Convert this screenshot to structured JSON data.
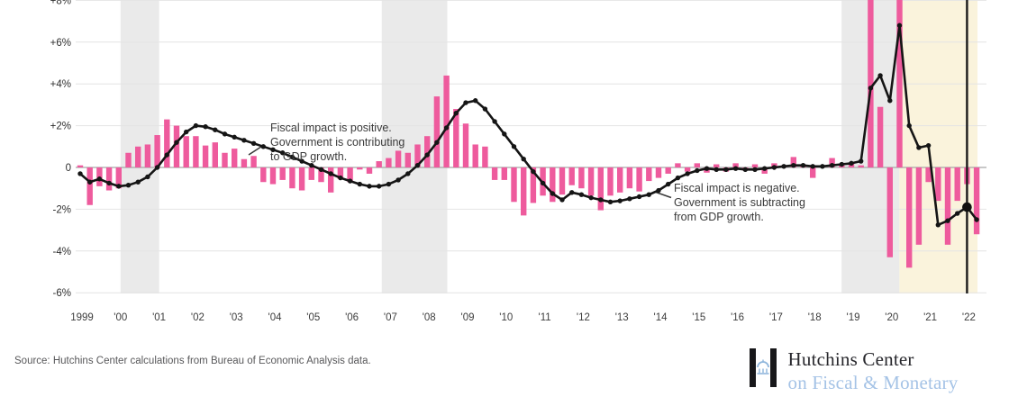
{
  "chart_data": {
    "type": "bar",
    "title": "",
    "x_axis": {
      "start_quarter": "1999Q1",
      "end_quarter": "2022Q2",
      "frequency": "quarterly",
      "tick_labels": [
        "1999",
        "'00",
        "'01",
        "'02",
        "'03",
        "'04",
        "'05",
        "'06",
        "'07",
        "'08",
        "'09",
        "'10",
        "'11",
        "'12",
        "'13",
        "'14",
        "'15",
        "'16",
        "'17",
        "'18",
        "'19",
        "'20",
        "'21",
        "'22"
      ]
    },
    "y_axis": {
      "tick_labels": [
        "+8%",
        "+6%",
        "+4%",
        "+2%",
        "0",
        "-2%",
        "-4%",
        "-6%"
      ],
      "tick_values": [
        8,
        6,
        4,
        2,
        0,
        -2,
        -4,
        -6
      ],
      "ylim": [
        -6.5,
        8.1
      ],
      "grid": true
    },
    "quarterly_fiscal_impact_bars": {
      "color": "#ee5b9d",
      "values": [
        0.1,
        -1.8,
        -0.9,
        -1.1,
        -1.0,
        0.7,
        1.0,
        1.1,
        1.55,
        2.3,
        2.0,
        1.5,
        1.5,
        1.05,
        1.2,
        0.7,
        0.9,
        0.4,
        0.55,
        -0.7,
        -0.8,
        -0.6,
        -1.0,
        -1.1,
        -0.6,
        -0.7,
        -1.2,
        -0.55,
        -0.7,
        -0.1,
        -0.3,
        0.3,
        0.45,
        0.8,
        0.7,
        1.1,
        1.5,
        3.4,
        4.4,
        2.8,
        2.1,
        1.1,
        1.0,
        -0.6,
        -0.6,
        -1.65,
        -2.3,
        -1.7,
        -1.35,
        -1.65,
        -1.3,
        -0.85,
        -1.0,
        -1.35,
        -2.05,
        -1.35,
        -1.2,
        -1.0,
        -1.15,
        -0.65,
        -0.5,
        -0.3,
        0.2,
        -0.2,
        0.2,
        -0.25,
        0.15,
        -0.2,
        0.2,
        -0.15,
        0.15,
        -0.3,
        0.2,
        0.1,
        0.5,
        0.15,
        -0.5,
        0.1,
        0.45,
        0.15,
        0.2,
        0.1,
        11.5,
        2.9,
        -4.3,
        11.9,
        -4.8,
        -3.7,
        -0.7,
        -1.6,
        -3.7,
        -1.6,
        -0.8,
        -3.2
      ]
    },
    "four_quarter_moving_average_line": {
      "color": "#151515",
      "values": [
        -0.3,
        -0.7,
        -0.55,
        -0.75,
        -0.9,
        -0.85,
        -0.7,
        -0.45,
        0.0,
        0.6,
        1.2,
        1.7,
        2.0,
        1.95,
        1.8,
        1.6,
        1.45,
        1.3,
        1.15,
        1.0,
        0.85,
        0.7,
        0.5,
        0.3,
        0.1,
        -0.1,
        -0.3,
        -0.5,
        -0.65,
        -0.8,
        -0.9,
        -0.9,
        -0.8,
        -0.6,
        -0.3,
        0.1,
        0.6,
        1.2,
        1.9,
        2.6,
        3.1,
        3.2,
        2.8,
        2.2,
        1.6,
        1.0,
        0.4,
        -0.2,
        -0.75,
        -1.25,
        -1.55,
        -1.2,
        -1.3,
        -1.45,
        -1.55,
        -1.65,
        -1.6,
        -1.5,
        -1.4,
        -1.3,
        -1.1,
        -0.8,
        -0.5,
        -0.3,
        -0.15,
        -0.05,
        -0.1,
        -0.1,
        -0.05,
        -0.1,
        -0.1,
        -0.05,
        0.0,
        0.05,
        0.1,
        0.1,
        0.05,
        0.05,
        0.1,
        0.15,
        0.2,
        0.3,
        3.8,
        4.4,
        3.2,
        6.8,
        2.0,
        0.95,
        1.05,
        -2.75,
        -2.55,
        -2.2,
        -1.9,
        -2.5
      ]
    },
    "shaded_regions": [
      {
        "kind": "recession",
        "from_index": 4.5,
        "to_index": 8.5,
        "color": "#eaeaea"
      },
      {
        "kind": "recession",
        "from_index": 31.6,
        "to_index": 38.4,
        "color": "#eaeaea"
      },
      {
        "kind": "recession",
        "from_index": 79.3,
        "to_index": 85.3,
        "color": "#eaeaea"
      },
      {
        "kind": "projection",
        "from_index": 85.3,
        "to_index": 93.4,
        "color": "#faf3dc"
      }
    ],
    "hover_marker": {
      "index": 92,
      "value": -1.9
    },
    "annotations": [
      {
        "lines": [
          "Fiscal impact is positive.",
          "Government is contributing",
          "to GDP growth."
        ]
      },
      {
        "lines": [
          "Fiscal impact is negative.",
          "Government is subtracting",
          "from GDP growth."
        ]
      }
    ]
  },
  "footer": {
    "source_text": "Source: Hutchins Center calculations from Bureau of Economic Analysis data."
  },
  "logo": {
    "title": "Hutchins Center",
    "subtitle": "on Fiscal & Monetary Policy",
    "colors": {
      "mark_black": "#17171a",
      "dome_blue": "#8fb6dc",
      "subtitle_blue": "#a5c3e6"
    }
  }
}
